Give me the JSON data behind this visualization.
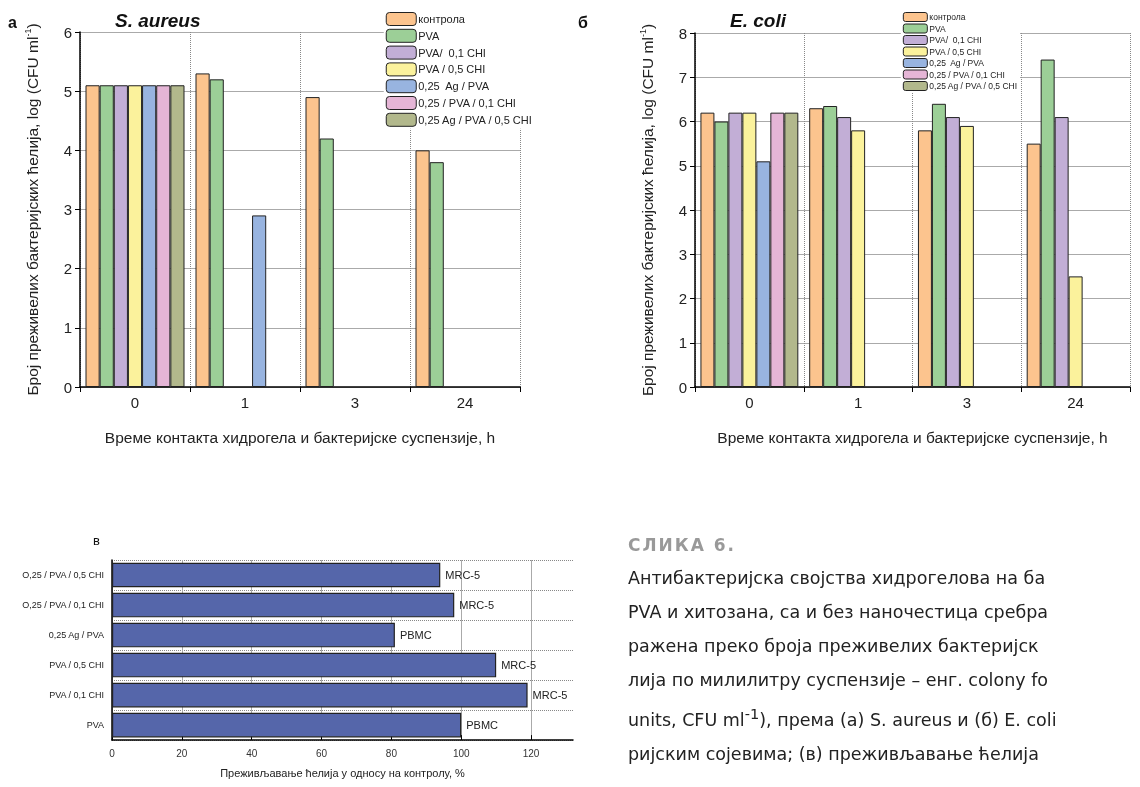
{
  "chart_data": [
    {
      "type": "bar",
      "title": "S. aureus",
      "annotations": [
        "а"
      ],
      "xlabel": "Време контакта хидрогела и бактеријске суспензије, h",
      "ylabel": "Број преживелих бактеријских ћелија, log (CFU ml$^{-1}$)",
      "categories": [
        "0",
        "1",
        "3",
        "24"
      ],
      "ylim": [
        0,
        6
      ],
      "yticks": [
        0,
        1,
        2,
        3,
        4,
        5,
        6
      ],
      "grid": true,
      "legend": "top right",
      "series": [
        {
          "name": "контрола",
          "color": "#fcc48e",
          "values": [
            5.1,
            5.3,
            4.9,
            4.0
          ]
        },
        {
          "name": "PVA",
          "color": "#9ccf97",
          "values": [
            5.1,
            5.2,
            4.2,
            3.8
          ]
        },
        {
          "name": "PVA/  0,1 CHI",
          "color": "#c2aed6",
          "values": [
            5.1,
            null,
            null,
            null
          ]
        },
        {
          "name": "PVA / 0,5 CHI",
          "color": "#fbf29c",
          "values": [
            5.1,
            null,
            null,
            null
          ]
        },
        {
          "name": "0,25  Ag / PVA",
          "color": "#98b4e0",
          "values": [
            5.1,
            2.9,
            null,
            null
          ]
        },
        {
          "name": "0,25 / PVA / 0,1 CHI",
          "color": "#e5b5d6",
          "values": [
            5.1,
            null,
            null,
            null
          ]
        },
        {
          "name": "0,25 Ag / PVA / 0,5 CHI",
          "color": "#b2b88c",
          "values": [
            5.1,
            null,
            null,
            null
          ]
        }
      ]
    },
    {
      "type": "bar",
      "title": "E. coli",
      "annotations": [
        "б"
      ],
      "xlabel": "Време контакта хидрогела и бактеријске суспензије, h",
      "ylabel": "Број преживелих бактеријских ћелија, log (CFU ml$^{-1}$)",
      "categories": [
        "0",
        "1",
        "3",
        "24"
      ],
      "ylim": [
        0,
        8
      ],
      "yticks": [
        0,
        1,
        2,
        3,
        4,
        5,
        6,
        7,
        8
      ],
      "grid": true,
      "legend": "top right",
      "series": [
        {
          "name": "контрола",
          "color": "#fcc48e",
          "values": [
            6.2,
            6.3,
            5.8,
            5.5
          ]
        },
        {
          "name": "PVA",
          "color": "#9ccf97",
          "values": [
            6.0,
            6.35,
            6.4,
            7.4
          ]
        },
        {
          "name": "PVA/  0,1 CHI",
          "color": "#c2aed6",
          "values": [
            6.2,
            6.1,
            6.1,
            6.1
          ]
        },
        {
          "name": "PVA / 0,5 CHI",
          "color": "#fbf29c",
          "values": [
            6.2,
            5.8,
            5.9,
            2.5
          ]
        },
        {
          "name": "0,25  Ag / PVA",
          "color": "#98b4e0",
          "values": [
            5.1,
            null,
            null,
            null
          ]
        },
        {
          "name": "0,25 / PVA / 0,1 CHI",
          "color": "#e5b5d6",
          "values": [
            6.2,
            null,
            null,
            null
          ]
        },
        {
          "name": "0,25 Ag / PVA / 0,5 CHI",
          "color": "#b2b88c",
          "values": [
            6.2,
            null,
            null,
            null
          ]
        }
      ]
    },
    {
      "type": "bar",
      "orientation": "horizontal",
      "title": "в",
      "xlabel": "Преживљавање ћелија у односу на контролу, %",
      "categories": [
        "O,25 / PVA / 0,5 CHI",
        "O,25 / PVA / 0,1 CHI",
        "0,25 Ag / PVA",
        "PVA / 0,5 CHI",
        "PVA / 0,1 CHI",
        "PVA"
      ],
      "values": [
        94,
        98,
        81,
        110,
        119,
        100
      ],
      "value_labels": [
        "MRC-5",
        "MRC-5",
        "PBMC",
        "MRC-5",
        "MRC-5",
        "PBMC"
      ],
      "color": "#5566aa",
      "xlim": [
        0,
        132
      ],
      "xticks": [
        0,
        20,
        40,
        60,
        80,
        100,
        120
      ],
      "grid": true
    },
    {
      "type": "other",
      "title": "СЛИКА 6.",
      "annotations": [
        "Антибактеријска својства хидрогелова на ба",
        "PVA и хитозана, са и без наночестица сребра",
        "ражена преко броја преживелих бактеријск",
        "лија по милилитру суспензије – енг. colony fo",
        "units, CFU ml$^{-1}$), према (а) S. aureus и (б) E. coli",
        "ријским сојевима; (в) преживљавање ћелија"
      ]
    }
  ]
}
